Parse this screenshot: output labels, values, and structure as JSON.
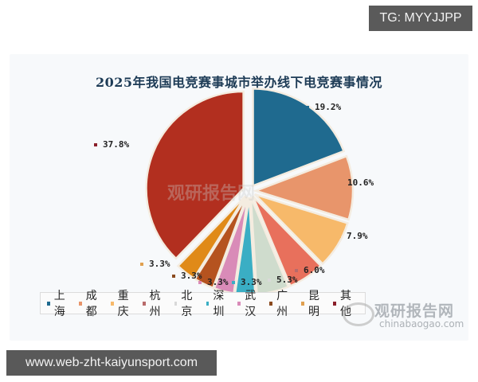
{
  "badges": {
    "tg": "TG: MYYJJPP",
    "url": "www.web-zht-kaiyunsport.com"
  },
  "watermark": {
    "brand": "观研报告网",
    "domain": "chinabaogao.com"
  },
  "chart_data": {
    "type": "pie",
    "title": "2025年我国电竞赛事城市举办线下电竞赛事情况",
    "categories": [
      "上海",
      "成都",
      "重庆",
      "杭州",
      "北京",
      "深圳",
      "武汉",
      "广州",
      "昆明",
      "其他"
    ],
    "values": [
      19.2,
      10.6,
      7.9,
      6.0,
      5.3,
      3.3,
      3.3,
      3.3,
      3.3,
      37.8
    ],
    "labels": [
      "19.2%",
      "10.6%",
      "7.9%",
      "6.0%",
      "5.3%",
      "3.3%",
      "3.3%",
      "3.3%",
      "3.3%",
      "37.8%"
    ],
    "colors": [
      "#1f6a8f",
      "#e8956b",
      "#f7b96a",
      "#e8705c",
      "#cfdccd",
      "#3aaec4",
      "#d98bb8",
      "#b5531f",
      "#e08a18",
      "#b22f1f"
    ],
    "unit": "%",
    "legend_position": "bottom",
    "exploded": true
  },
  "legend": {
    "items": [
      {
        "label": "上海",
        "color": "#1f6a8f"
      },
      {
        "label": "成都",
        "color": "#e8956b"
      },
      {
        "label": "重庆",
        "color": "#f7b96a"
      },
      {
        "label": "杭州",
        "color": "#b86a6a"
      },
      {
        "label": "北京",
        "color": "#d9d9d9"
      },
      {
        "label": "深圳",
        "color": "#3aaec4"
      },
      {
        "label": "武汉",
        "color": "#d98bb8"
      },
      {
        "label": "广州",
        "color": "#8a4a1f"
      },
      {
        "label": "昆明",
        "color": "#e0a050"
      },
      {
        "label": "其他",
        "color": "#8a1f2a"
      }
    ]
  }
}
